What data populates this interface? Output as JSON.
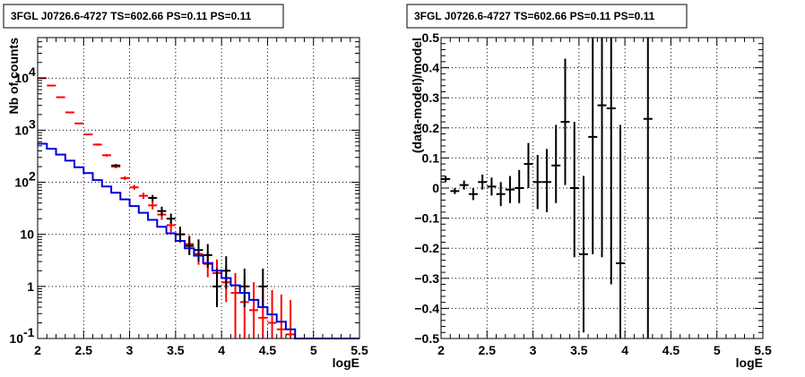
{
  "chart_data": [
    {
      "type": "line",
      "title": "3FGL J0726.6-4727 TS=602.66 PS=0.11 PS=0.11",
      "xlabel": "logE",
      "ylabel": "Nb of counts",
      "xlim": [
        2,
        5.5
      ],
      "ylim": [
        0.1,
        60000
      ],
      "log_y": true,
      "grid": true,
      "x_ticks": [
        "2",
        "2.5",
        "3",
        "3.5",
        "4",
        "4.5",
        "5",
        "5.5"
      ],
      "y_ticks": [
        {
          "value": 0.1,
          "label": "10",
          "exp": "-1"
        },
        {
          "value": 1,
          "label": "1",
          "exp": ""
        },
        {
          "value": 10,
          "label": "10",
          "exp": ""
        },
        {
          "value": 100,
          "label": "10",
          "exp": "2"
        },
        {
          "value": 1000,
          "label": "10",
          "exp": "3"
        },
        {
          "value": 10000,
          "label": "10",
          "exp": "4"
        }
      ],
      "series": [
        {
          "color": "#ff0000",
          "style": "points",
          "points": [
            {
              "x": 2.05,
              "y": 10000,
              "lo": 9800,
              "hi": 10200
            },
            {
              "x": 2.15,
              "y": 7200,
              "lo": 7050,
              "hi": 7350
            },
            {
              "x": 2.25,
              "y": 4300,
              "lo": 4200,
              "hi": 4400
            },
            {
              "x": 2.35,
              "y": 2200,
              "lo": 2140,
              "hi": 2260
            },
            {
              "x": 2.45,
              "y": 1350,
              "lo": 1310,
              "hi": 1390
            },
            {
              "x": 2.55,
              "y": 830,
              "lo": 800,
              "hi": 860
            },
            {
              "x": 2.65,
              "y": 530,
              "lo": 505,
              "hi": 555
            },
            {
              "x": 2.75,
              "y": 330,
              "lo": 312,
              "hi": 348
            },
            {
              "x": 2.85,
              "y": 200,
              "lo": 186,
              "hi": 214
            },
            {
              "x": 2.95,
              "y": 120,
              "lo": 110,
              "hi": 131
            },
            {
              "x": 3.05,
              "y": 80,
              "lo": 72,
              "hi": 89
            },
            {
              "x": 3.15,
              "y": 55,
              "lo": 48,
              "hi": 63
            },
            {
              "x": 3.25,
              "y": 36,
              "lo": 30,
              "hi": 43
            },
            {
              "x": 3.35,
              "y": 24,
              "lo": 19,
              "hi": 30
            },
            {
              "x": 3.45,
              "y": 15,
              "lo": 11,
              "hi": 20
            },
            {
              "x": 3.55,
              "y": 10,
              "lo": 7,
              "hi": 14
            },
            {
              "x": 3.65,
              "y": 6.5,
              "lo": 4.3,
              "hi": 9.5
            },
            {
              "x": 3.75,
              "y": 4.2,
              "lo": 2.6,
              "hi": 6.6
            },
            {
              "x": 3.85,
              "y": 2.7,
              "lo": 1.5,
              "hi": 4.5
            },
            {
              "x": 3.95,
              "y": 1.8,
              "lo": 0.9,
              "hi": 3.3
            },
            {
              "x": 4.05,
              "y": 1.2,
              "lo": 0.5,
              "hi": 2.5
            },
            {
              "x": 4.15,
              "y": 0.75,
              "lo": 0.1,
              "hi": 1.8
            },
            {
              "x": 4.25,
              "y": 0.5,
              "lo": 0.1,
              "hi": 1.5
            },
            {
              "x": 4.35,
              "y": 0.35,
              "lo": 0.1,
              "hi": 1.2
            },
            {
              "x": 4.45,
              "y": 0.25,
              "lo": 0.1,
              "hi": 1.0
            },
            {
              "x": 4.55,
              "y": 0.2,
              "lo": 0.1,
              "hi": 0.85
            },
            {
              "x": 4.65,
              "y": 0.15,
              "lo": 0.1,
              "hi": 0.7
            },
            {
              "x": 4.75,
              "y": 0.12,
              "lo": 0.1,
              "hi": 0.55
            }
          ]
        },
        {
          "color": "#000000",
          "style": "points",
          "points": [
            {
              "x": 2.85,
              "y": 210,
              "lo": 196,
              "hi": 224
            },
            {
              "x": 3.25,
              "y": 50,
              "lo": 43,
              "hi": 57
            },
            {
              "x": 3.35,
              "y": 28,
              "lo": 23,
              "hi": 34
            },
            {
              "x": 3.45,
              "y": 20,
              "lo": 16,
              "hi": 25
            },
            {
              "x": 3.55,
              "y": 10,
              "lo": 7,
              "hi": 14
            },
            {
              "x": 3.65,
              "y": 6,
              "lo": 4,
              "hi": 9
            },
            {
              "x": 3.75,
              "y": 5,
              "lo": 3,
              "hi": 8
            },
            {
              "x": 3.85,
              "y": 4,
              "lo": 2.3,
              "hi": 6.5
            },
            {
              "x": 3.95,
              "y": 1,
              "lo": 0.4,
              "hi": 2.2
            },
            {
              "x": 4.05,
              "y": 2,
              "lo": 0.9,
              "hi": 3.8
            },
            {
              "x": 4.25,
              "y": 1,
              "lo": 0.4,
              "hi": 2.2
            },
            {
              "x": 4.45,
              "y": 1,
              "lo": 0.4,
              "hi": 2.2
            }
          ]
        },
        {
          "color": "#0000dd",
          "style": "step",
          "edges": [
            2.0,
            2.1,
            2.2,
            2.3,
            2.4,
            2.5,
            2.6,
            2.7,
            2.8,
            2.9,
            3.0,
            3.1,
            3.2,
            3.3,
            3.4,
            3.5,
            3.6,
            3.7,
            3.8,
            3.9,
            4.0,
            4.1,
            4.2,
            4.3,
            4.4,
            4.5,
            4.6,
            4.7,
            4.8,
            4.9,
            5.0,
            5.5
          ],
          "values": [
            550,
            440,
            340,
            260,
            195,
            150,
            110,
            83,
            63,
            47,
            35,
            26,
            19,
            14,
            10.5,
            7.5,
            5.4,
            3.9,
            2.8,
            2.0,
            1.45,
            1.05,
            0.75,
            0.55,
            0.4,
            0.29,
            0.21,
            0.15,
            0.1,
            0.1,
            0.1
          ]
        }
      ]
    },
    {
      "type": "scatter",
      "title": "3FGL J0726.6-4727 TS=602.66 PS=0.11 PS=0.11",
      "xlabel": "logE",
      "ylabel": "(data-model)/model",
      "xlim": [
        2,
        5.5
      ],
      "ylim": [
        -0.5,
        0.5
      ],
      "grid": true,
      "x_ticks": [
        "2",
        "2.5",
        "3",
        "3.5",
        "4",
        "4.5",
        "5",
        "5.5"
      ],
      "y_ticks": [
        "−0.5",
        "−0.4",
        "−0.3",
        "−0.2",
        "−0.1",
        "0",
        "0.1",
        "0.2",
        "0.3",
        "0.4",
        "0.5"
      ],
      "series": [
        {
          "color": "#000000",
          "points": [
            {
              "x": 2.05,
              "y": 0.03,
              "lo": 0.02,
              "hi": 0.04
            },
            {
              "x": 2.15,
              "y": -0.01,
              "lo": -0.02,
              "hi": 0.0
            },
            {
              "x": 2.25,
              "y": 0.01,
              "lo": -0.005,
              "hi": 0.025
            },
            {
              "x": 2.35,
              "y": -0.02,
              "lo": -0.04,
              "hi": 0.0
            },
            {
              "x": 2.45,
              "y": 0.02,
              "lo": -0.005,
              "hi": 0.045
            },
            {
              "x": 2.55,
              "y": 0.005,
              "lo": -0.025,
              "hi": 0.035
            },
            {
              "x": 2.65,
              "y": -0.02,
              "lo": -0.06,
              "hi": 0.02
            },
            {
              "x": 2.75,
              "y": -0.005,
              "lo": -0.05,
              "hi": 0.04
            },
            {
              "x": 2.85,
              "y": 0.0,
              "lo": -0.05,
              "hi": 0.06
            },
            {
              "x": 2.95,
              "y": 0.08,
              "lo": 0.0,
              "hi": 0.15
            },
            {
              "x": 3.05,
              "y": 0.02,
              "lo": -0.07,
              "hi": 0.11
            },
            {
              "x": 3.15,
              "y": 0.02,
              "lo": -0.08,
              "hi": 0.13
            },
            {
              "x": 3.25,
              "y": 0.075,
              "lo": -0.05,
              "hi": 0.21
            },
            {
              "x": 3.35,
              "y": 0.22,
              "lo": 0.01,
              "hi": 0.43
            },
            {
              "x": 3.45,
              "y": 0.0,
              "lo": -0.23,
              "hi": 0.22
            },
            {
              "x": 3.55,
              "y": -0.22,
              "lo": -0.48,
              "hi": 0.04
            },
            {
              "x": 3.65,
              "y": 0.17,
              "lo": -0.22,
              "hi": 0.5
            },
            {
              "x": 3.75,
              "y": 0.275,
              "lo": -0.23,
              "hi": 0.5
            },
            {
              "x": 3.85,
              "y": 0.265,
              "lo": -0.32,
              "hi": 0.5
            },
            {
              "x": 3.95,
              "y": -0.25,
              "lo": -0.5,
              "hi": 0.21
            },
            {
              "x": 4.25,
              "y": 0.23,
              "lo": -0.5,
              "hi": 0.5
            }
          ]
        }
      ]
    }
  ]
}
